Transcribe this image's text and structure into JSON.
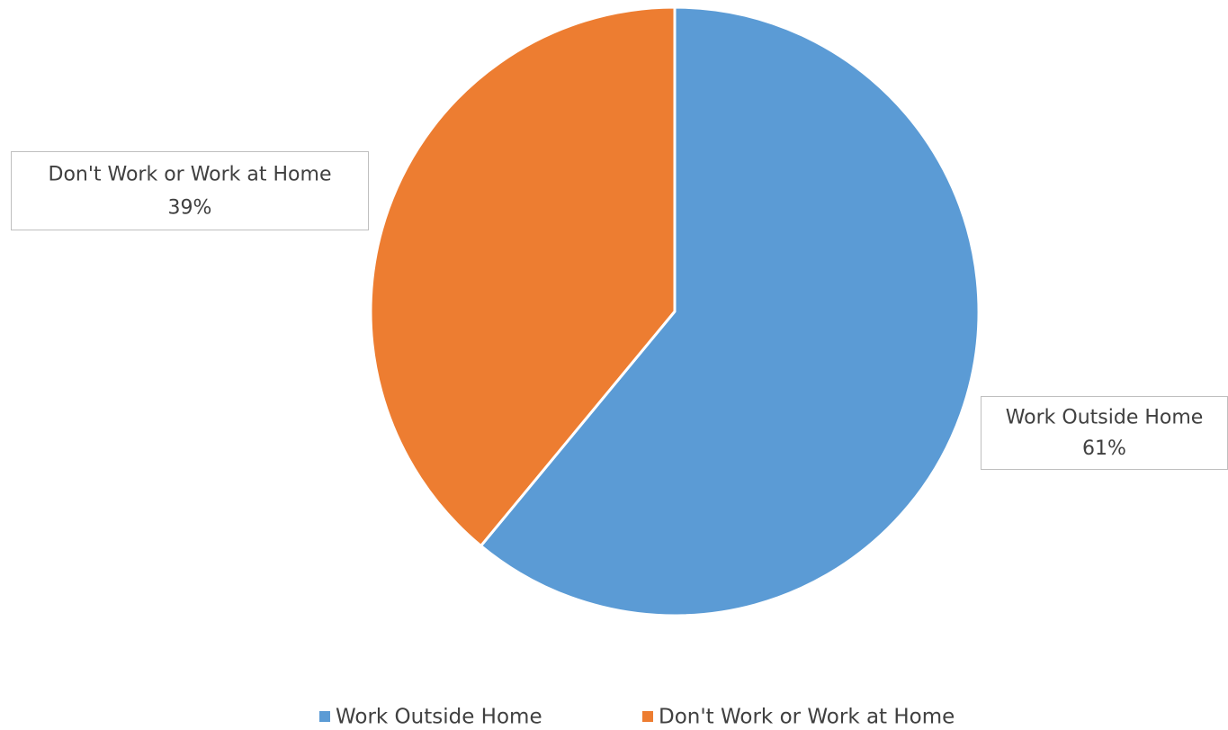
{
  "chart_data": {
    "type": "pie",
    "categories": [
      "Work Outside Home",
      "Don't Work or Work at Home"
    ],
    "values": [
      61,
      39
    ],
    "value_labels": [
      "61%",
      "39%"
    ],
    "colors": [
      "#5b9bd5",
      "#ed7d31"
    ],
    "legend": "bottom"
  }
}
